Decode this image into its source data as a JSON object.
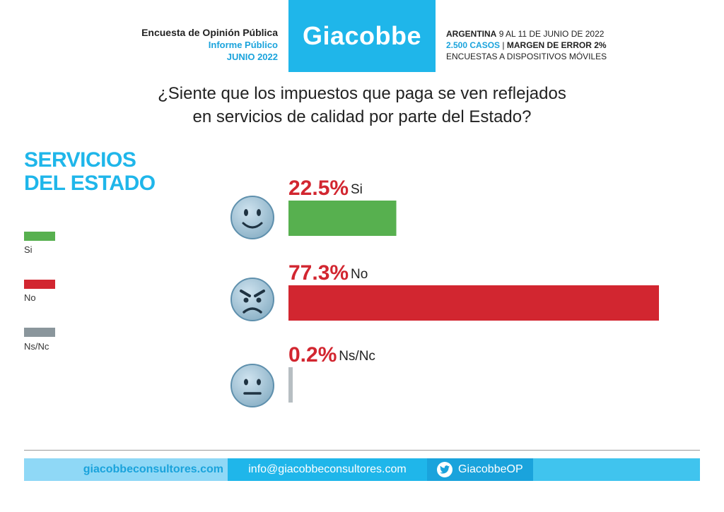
{
  "header": {
    "left_line1": "Encuesta de Opinión Pública",
    "left_line2": "Informe Público",
    "left_line3": "JUNIO 2022",
    "logo": "Giacobbe",
    "right_country": "ARGENTINA",
    "right_dates": "9 AL 11 DE JUNIO DE 2022",
    "right_cases": "2.500 CASOS",
    "right_sep": "|",
    "right_margin": "MARGEN DE ERROR 2%",
    "right_line3": "ENCUESTAS A DISPOSITIVOS MÓVILES"
  },
  "question_line1": "¿Siente que los impuestos que paga se ven reflejados",
  "question_line2": "en servicios de calidad por parte del Estado?",
  "section_line1": "SERVICIOS",
  "section_line2": "DEL ESTADO",
  "legend": [
    {
      "label": "Si",
      "color": "#57b04f"
    },
    {
      "label": "No",
      "color": "#d22630"
    },
    {
      "label": "Ns/Nc",
      "color": "#8a969c"
    }
  ],
  "chart_data": {
    "type": "bar",
    "orientation": "horizontal",
    "categories": [
      "Si",
      "No",
      "Ns/Nc"
    ],
    "values": [
      22.5,
      77.3,
      0.2
    ],
    "value_labels": [
      "22.5%",
      "77.3%",
      "0.2%"
    ],
    "colors": [
      "#57b04f",
      "#d22630",
      "#b7bec2"
    ],
    "icons": [
      "smiley-face-icon",
      "angry-face-icon",
      "neutral-face-icon"
    ],
    "unit": "%",
    "xlim": [
      0,
      77.3
    ],
    "grid": false,
    "legend_position": "left"
  },
  "footer": {
    "website": "giacobbeconsultores.com",
    "email": "info@giacobbeconsultores.com",
    "twitter_icon": "twitter-icon",
    "twitter": "GiacobbeOP"
  }
}
